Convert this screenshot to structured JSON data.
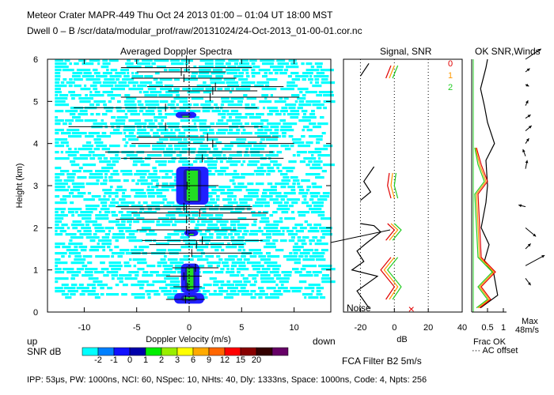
{
  "header": {
    "line1": "Meteor Crater   MAPR-449   Thu Oct 24 2013 01:00 – 01:04 UT 18:00 MST",
    "line2": "Dwell   0 –   B    /scr/data/modular_prof/raw/20131024/24-Oct-2013_01-00-01.cor.nc"
  },
  "panels": {
    "spectra_title": "Averaged Doppler Spectra",
    "signal_title": "Signal, SNR",
    "ok_title": "OK SNR,Winds",
    "noise_label": "Noise",
    "up_label": "up",
    "down_label": "down",
    "snr_unit": "SNR dB",
    "fca": "FCA Filter B2   5m/s",
    "frac_ok": "Frac OK",
    "ac_offset": "··· AC offset",
    "max_line1": "Max",
    "max_line2": "48m/s",
    "ok_legend": [
      "0",
      "1",
      "2"
    ]
  },
  "footer": "IPP:  53μs,   PW: 1000ns,   NCI:  60,   NSpec: 10,  NHts: 40,   Dly: 1333ns,   Space: 1000ns,   Code: 4,   Npts: 256",
  "colors": {
    "spectra_fill": "#00ffff",
    "core_blue": "#2020ff",
    "core_green": "#22dd22",
    "ok_red": "#e00000",
    "ok_orange": "#ff9900",
    "ok_green": "#22cc22"
  },
  "chart_data": [
    {
      "type": "heatmap",
      "title": "Averaged Doppler Spectra",
      "xlabel": "Doppler Velocity (m/s)",
      "ylabel": "Height (km)",
      "xlim": [
        -13.5,
        13.5
      ],
      "ylim": [
        0,
        6
      ],
      "xticks": [
        -10,
        -5,
        0,
        5,
        10
      ],
      "yticks": [
        0,
        1,
        2,
        3,
        4,
        5,
        6
      ],
      "colorbar": {
        "label": "SNR dB",
        "ticks": [
          "-2",
          "-1",
          "0",
          "1",
          "2",
          "3",
          "6",
          "9",
          "12",
          "15",
          "20"
        ],
        "colors": [
          "#00ffff",
          "#0080ff",
          "#1010ff",
          "#0000aa",
          "#00ee00",
          "#99ee00",
          "#ffff00",
          "#ffaa00",
          "#ff6600",
          "#ff0000",
          "#880000",
          "#330000",
          "#660066"
        ]
      },
      "strong_echo_segments": [
        {
          "h0": 0.2,
          "h1": 0.45,
          "v": 0.0,
          "w": 1.3
        },
        {
          "h0": 0.45,
          "h1": 1.15,
          "v": 0.1,
          "w": 0.8
        },
        {
          "h0": 1.8,
          "h1": 1.95,
          "v": 0.2,
          "w": 0.6
        },
        {
          "h0": 2.55,
          "h1": 3.45,
          "v": 0.3,
          "w": 1.4
        },
        {
          "h0": 4.6,
          "h1": 4.75,
          "v": -0.3,
          "w": 0.9
        }
      ],
      "spread_bars": [
        {
          "h": 0.3,
          "lo": -2.2,
          "hi": 1.5
        },
        {
          "h": 0.6,
          "lo": -1.5,
          "hi": 1.2
        },
        {
          "h": 0.85,
          "lo": -2.2,
          "hi": 1.2
        },
        {
          "h": 1.05,
          "lo": -1.6,
          "hi": 2.8
        },
        {
          "h": 1.4,
          "lo": -5.5,
          "hi": 6.0
        },
        {
          "h": 1.6,
          "lo": -3.8,
          "hi": 5.2
        },
        {
          "h": 1.7,
          "lo": -4.5,
          "hi": 7.0
        },
        {
          "h": 1.95,
          "lo": -5.0,
          "hi": 4.5
        },
        {
          "h": 2.2,
          "lo": -7.0,
          "hi": 6.5
        },
        {
          "h": 2.35,
          "lo": -5.5,
          "hi": 7.5
        },
        {
          "h": 2.45,
          "lo": -6.5,
          "hi": 6.0
        },
        {
          "h": 2.5,
          "lo": -7.0,
          "hi": 6.0
        },
        {
          "h": 3.0,
          "lo": -3.2,
          "hi": 2.8
        },
        {
          "h": 3.65,
          "lo": -6.5,
          "hi": 9.0
        },
        {
          "h": 3.8,
          "lo": -8.0,
          "hi": 8.0
        },
        {
          "h": 4.0,
          "lo": -5.5,
          "hi": 10.0
        },
        {
          "h": 4.15,
          "lo": -5.0,
          "hi": 8.5
        },
        {
          "h": 4.4,
          "lo": -11.5,
          "hi": 7.0
        },
        {
          "h": 4.85,
          "lo": -11.0,
          "hi": 6.5
        },
        {
          "h": 5.1,
          "lo": -6.5,
          "hi": 10.5
        },
        {
          "h": 5.25,
          "lo": -2.0,
          "hi": 6.5
        },
        {
          "h": 5.35,
          "lo": -4.0,
          "hi": 9.0
        },
        {
          "h": 5.55,
          "lo": -5.5,
          "hi": 4.5
        },
        {
          "h": 5.7,
          "lo": -5.0,
          "hi": 3.5
        },
        {
          "h": 5.8,
          "lo": -6.5,
          "hi": 6.0
        },
        {
          "h": 6.0,
          "lo": -6.0,
          "hi": 5.5
        }
      ]
    },
    {
      "type": "line",
      "title": "Signal, SNR",
      "xlabel": "dB",
      "xlim": [
        -30,
        40
      ],
      "ylim": [
        0,
        6
      ],
      "xticks": [
        -20,
        0,
        20,
        40
      ],
      "noise_marker_db": 10,
      "series": [
        {
          "name": "signal",
          "segments": [
            [
              [
                -15,
                0.1
              ],
              [
                -22,
                0.5
              ],
              [
                -10,
                0.85
              ],
              [
                -25,
                1.0
              ],
              [
                -18,
                1.2
              ],
              [
                -22,
                1.45
              ],
              [
                -16,
                1.65
              ],
              [
                -8,
                1.9
              ],
              [
                -12,
                2.05
              ],
              [
                -20,
                2.1
              ]
            ],
            [
              [
                -20,
                2.65
              ],
              [
                -14,
                2.85
              ],
              [
                -18,
                3.1
              ],
              [
                -12,
                3.45
              ]
            ],
            [
              [
                -20,
                5.6
              ],
              [
                -15,
                5.9
              ]
            ]
          ]
        },
        {
          "name": "OK0",
          "segments": [
            [
              [
                -5,
                0.3
              ],
              [
                0,
                0.6
              ],
              [
                -8,
                1.0
              ],
              [
                -2,
                1.3
              ]
            ],
            [
              [
                -5,
                1.7
              ],
              [
                0,
                1.95
              ],
              [
                -4,
                2.1
              ]
            ],
            [
              [
                -2,
                2.7
              ],
              [
                -4,
                3.0
              ],
              [
                -3,
                3.3
              ]
            ],
            [
              [
                -5,
                5.55
              ],
              [
                -2,
                5.85
              ]
            ]
          ]
        },
        {
          "name": "OK1",
          "segments": [
            [
              [
                -3,
                0.3
              ],
              [
                2,
                0.6
              ],
              [
                -6,
                1.0
              ],
              [
                0,
                1.3
              ]
            ],
            [
              [
                -3,
                1.7
              ],
              [
                2,
                1.95
              ],
              [
                -2,
                2.1
              ]
            ],
            [
              [
                0,
                2.7
              ],
              [
                -2,
                3.0
              ],
              [
                -1,
                3.3
              ]
            ],
            [
              [
                -3,
                5.55
              ],
              [
                0,
                5.85
              ]
            ]
          ]
        },
        {
          "name": "OK2",
          "segments": [
            [
              [
                -1,
                0.3
              ],
              [
                4,
                0.6
              ],
              [
                -4,
                1.0
              ],
              [
                2,
                1.3
              ]
            ],
            [
              [
                -1,
                1.7
              ],
              [
                4,
                1.95
              ],
              [
                0,
                2.1
              ]
            ],
            [
              [
                2,
                2.7
              ],
              [
                0,
                3.0
              ],
              [
                1,
                3.3
              ]
            ],
            [
              [
                -1,
                5.55
              ],
              [
                2,
                5.85
              ]
            ]
          ]
        }
      ]
    },
    {
      "type": "line",
      "title": "OK SNR,Winds",
      "xlabel": "Frac OK",
      "xlim": [
        0,
        1.1
      ],
      "ylim": [
        0,
        6
      ],
      "xticks": [
        0.5,
        1
      ],
      "ticklabels": [
        "0.5",
        "1"
      ],
      "max_speed_ms": 48,
      "series": [
        {
          "name": "frac_ok",
          "points": [
            [
              0.28,
              0.1
            ],
            [
              0.82,
              0.4
            ],
            [
              0.7,
              0.9
            ],
            [
              0.4,
              1.2
            ],
            [
              0.55,
              1.6
            ],
            [
              0.3,
              2.0
            ],
            [
              0.45,
              2.6
            ],
            [
              0.5,
              3.0
            ],
            [
              0.45,
              3.6
            ],
            [
              0.72,
              4.0
            ],
            [
              0.5,
              4.5
            ],
            [
              0.4,
              4.9
            ],
            [
              0.28,
              5.3
            ],
            [
              0.45,
              5.8
            ],
            [
              0.5,
              6.0
            ]
          ]
        },
        {
          "name": "OK0",
          "points": [
            [
              0.25,
              0.1
            ],
            [
              0.6,
              0.3
            ],
            [
              0.3,
              0.6
            ],
            [
              0.75,
              0.95
            ],
            [
              0.3,
              1.3
            ],
            [
              0.2,
              2.8
            ],
            [
              0.5,
              3.1
            ],
            [
              0.3,
              3.5
            ],
            [
              0.15,
              3.9
            ]
          ]
        },
        {
          "name": "OK1",
          "points": [
            [
              0.2,
              0.1
            ],
            [
              0.55,
              0.3
            ],
            [
              0.25,
              0.6
            ],
            [
              0.7,
              0.95
            ],
            [
              0.25,
              1.3
            ],
            [
              0.15,
              2.8
            ],
            [
              0.45,
              3.1
            ],
            [
              0.25,
              3.5
            ],
            [
              0.12,
              3.9
            ]
          ]
        },
        {
          "name": "OK2",
          "points": [
            [
              0.15,
              0.1
            ],
            [
              0.5,
              0.3
            ],
            [
              0.2,
              0.6
            ],
            [
              0.65,
              0.95
            ],
            [
              0.2,
              1.3
            ],
            [
              0.1,
              2.8
            ],
            [
              0.4,
              3.1
            ],
            [
              0.2,
              3.5
            ],
            [
              0.1,
              3.9
            ]
          ]
        }
      ],
      "wind_vectors": [
        {
          "h": 6.0,
          "dx": 0.9,
          "dy": 0.6
        },
        {
          "h": 5.7,
          "dx": 0.25,
          "dy": 0.2
        },
        {
          "h": 5.4,
          "dx": 0.2,
          "dy": -0.1
        },
        {
          "h": 4.9,
          "dx": 0.15,
          "dy": 0.3
        },
        {
          "h": 4.6,
          "dx": 0.3,
          "dy": 0.2
        },
        {
          "h": 4.3,
          "dx": 0.35,
          "dy": 0.3
        },
        {
          "h": 4.0,
          "dx": 0.2,
          "dy": 0.3
        },
        {
          "h": 3.7,
          "dx": -0.15,
          "dy": 0.4
        },
        {
          "h": 3.4,
          "dx": 0.1,
          "dy": 0.5
        },
        {
          "h": 2.5,
          "dx": -0.4,
          "dy": 0.1
        },
        {
          "h": 2.0,
          "dx": 0.6,
          "dy": -0.5
        },
        {
          "h": 1.5,
          "dx": 0.3,
          "dy": 0.3
        },
        {
          "h": 1.1,
          "dx": 1.1,
          "dy": 0.6
        },
        {
          "h": 0.8,
          "dx": 0.3,
          "dy": -0.4
        }
      ]
    }
  ]
}
